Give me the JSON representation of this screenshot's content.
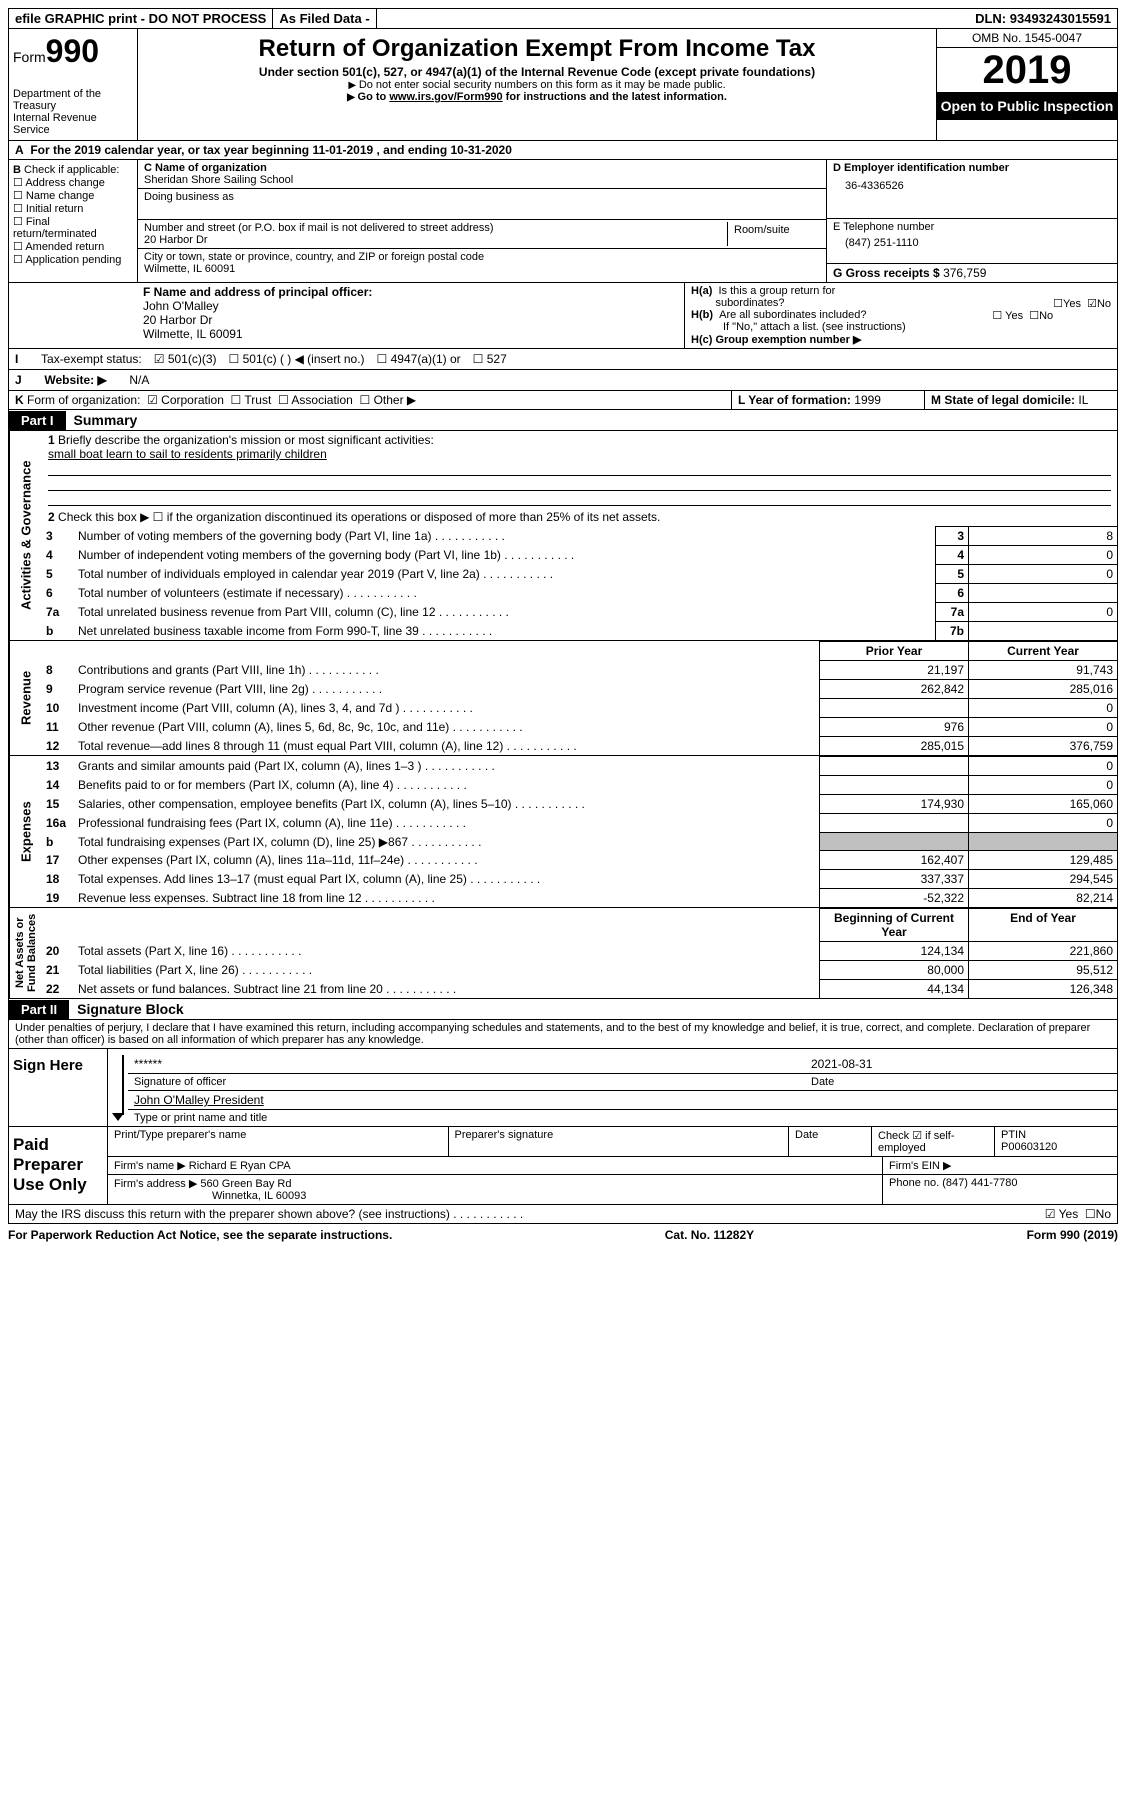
{
  "top": {
    "efile": "efile GRAPHIC print - DO NOT PROCESS",
    "asfiled": "As Filed Data -",
    "dln_label": "DLN:",
    "dln": "93493243015591"
  },
  "header": {
    "form_label": "Form",
    "form_no": "990",
    "dept": "Department of the Treasury\nInternal Revenue Service",
    "title": "Return of Organization Exempt From Income Tax",
    "sub": "Under section 501(c), 527, or 4947(a)(1) of the Internal Revenue Code (except private foundations)",
    "note1": "Do not enter social security numbers on this form as it may be made public.",
    "note2_pre": "Go to ",
    "note2_link": "www.irs.gov/Form990",
    "note2_post": " for instructions and the latest information.",
    "omb": "OMB No. 1545-0047",
    "year": "2019",
    "open": "Open to Public Inspection"
  },
  "rowA": "For the 2019 calendar year, or tax year beginning 11-01-2019   , and ending 10-31-2020",
  "boxB": {
    "label": "Check if applicable:",
    "items": [
      "Address change",
      "Name change",
      "Initial return",
      "Final return/terminated",
      "Amended return",
      "Application pending"
    ]
  },
  "boxC": {
    "name_label": "C Name of organization",
    "name": "Sheridan Shore Sailing School",
    "dba_label": "Doing business as",
    "addr_label": "Number and street (or P.O. box if mail is not delivered to street address)",
    "room_label": "Room/suite",
    "addr": "20 Harbor Dr",
    "city_label": "City or town, state or province, country, and ZIP or foreign postal code",
    "city": "Wilmette, IL  60091"
  },
  "boxD": {
    "label": "D Employer identification number",
    "val": "36-4336526"
  },
  "boxE": {
    "label": "E Telephone number",
    "val": "(847) 251-1110"
  },
  "boxG": {
    "label": "G Gross receipts $",
    "val": "376,759"
  },
  "boxF": {
    "label": "F  Name and address of principal officer:",
    "name": "John O'Malley",
    "addr1": "20 Harbor Dr",
    "addr2": "Wilmette, IL  60091"
  },
  "boxH": {
    "ha": "H(a)  Is this a group return for subordinates?",
    "hb": "H(b)  Are all subordinates included?",
    "hb_note": "If \"No,\" attach a list. (see instructions)",
    "hc": "H(c)  Group exemption number ▶",
    "yes": "Yes",
    "no": "No"
  },
  "rowI": {
    "label": "Tax-exempt status:",
    "opts": [
      "501(c)(3)",
      "501(c) (  ) ◀ (insert no.)",
      "4947(a)(1) or",
      "527"
    ]
  },
  "rowJ": {
    "label": "Website: ▶",
    "val": "N/A"
  },
  "rowK": {
    "label": "Form of organization:",
    "opts": [
      "Corporation",
      "Trust",
      "Association",
      "Other ▶"
    ]
  },
  "boxL": {
    "label": "L Year of formation:",
    "val": "1999"
  },
  "boxM": {
    "label": "M State of legal domicile:",
    "val": "IL"
  },
  "part1": {
    "tab": "Part I",
    "title": "Summary"
  },
  "mission": {
    "q": "Briefly describe the organization's mission or most significant activities:",
    "a": "small boat learn to sail to residents primarily children"
  },
  "line2": "Check this box ▶ ☐  if the organization discontinued its operations or disposed of more than 25% of its net assets.",
  "gov_rows": [
    {
      "n": "3",
      "t": "Number of voting members of the governing body (Part VI, line 1a)",
      "ln": "3",
      "v": "8"
    },
    {
      "n": "4",
      "t": "Number of independent voting members of the governing body (Part VI, line 1b)",
      "ln": "4",
      "v": "0"
    },
    {
      "n": "5",
      "t": "Total number of individuals employed in calendar year 2019 (Part V, line 2a)",
      "ln": "5",
      "v": "0"
    },
    {
      "n": "6",
      "t": "Total number of volunteers (estimate if necessary)",
      "ln": "6",
      "v": ""
    },
    {
      "n": "7a",
      "t": "Total unrelated business revenue from Part VIII, column (C), line 12",
      "ln": "7a",
      "v": "0"
    },
    {
      "n": "b",
      "t": "Net unrelated business taxable income from Form 990-T, line 39",
      "ln": "7b",
      "v": ""
    }
  ],
  "rev_head": {
    "py": "Prior Year",
    "cy": "Current Year"
  },
  "rev_rows": [
    {
      "n": "8",
      "t": "Contributions and grants (Part VIII, line 1h)",
      "py": "21,197",
      "cy": "91,743"
    },
    {
      "n": "9",
      "t": "Program service revenue (Part VIII, line 2g)",
      "py": "262,842",
      "cy": "285,016"
    },
    {
      "n": "10",
      "t": "Investment income (Part VIII, column (A), lines 3, 4, and 7d )",
      "py": "",
      "cy": "0"
    },
    {
      "n": "11",
      "t": "Other revenue (Part VIII, column (A), lines 5, 6d, 8c, 9c, 10c, and 11e)",
      "py": "976",
      "cy": "0"
    },
    {
      "n": "12",
      "t": "Total revenue—add lines 8 through 11 (must equal Part VIII, column (A), line 12)",
      "py": "285,015",
      "cy": "376,759"
    }
  ],
  "exp_rows": [
    {
      "n": "13",
      "t": "Grants and similar amounts paid (Part IX, column (A), lines 1–3 )",
      "py": "",
      "cy": "0"
    },
    {
      "n": "14",
      "t": "Benefits paid to or for members (Part IX, column (A), line 4)",
      "py": "",
      "cy": "0"
    },
    {
      "n": "15",
      "t": "Salaries, other compensation, employee benefits (Part IX, column (A), lines 5–10)",
      "py": "174,930",
      "cy": "165,060"
    },
    {
      "n": "16a",
      "t": "Professional fundraising fees (Part IX, column (A), line 11e)",
      "py": "",
      "cy": "0"
    },
    {
      "n": "b",
      "t": "Total fundraising expenses (Part IX, column (D), line 25) ▶867",
      "py": "SHADE",
      "cy": "SHADE"
    },
    {
      "n": "17",
      "t": "Other expenses (Part IX, column (A), lines 11a–11d, 11f–24e)",
      "py": "162,407",
      "cy": "129,485"
    },
    {
      "n": "18",
      "t": "Total expenses. Add lines 13–17 (must equal Part IX, column (A), line 25)",
      "py": "337,337",
      "cy": "294,545"
    },
    {
      "n": "19",
      "t": "Revenue less expenses. Subtract line 18 from line 12",
      "py": "-52,322",
      "cy": "82,214"
    }
  ],
  "na_head": {
    "py": "Beginning of Current Year",
    "cy": "End of Year"
  },
  "na_rows": [
    {
      "n": "20",
      "t": "Total assets (Part X, line 16)",
      "py": "124,134",
      "cy": "221,860"
    },
    {
      "n": "21",
      "t": "Total liabilities (Part X, line 26)",
      "py": "80,000",
      "cy": "95,512"
    },
    {
      "n": "22",
      "t": "Net assets or fund balances. Subtract line 21 from line 20",
      "py": "44,134",
      "cy": "126,348"
    }
  ],
  "sides": {
    "gov": "Activities & Governance",
    "rev": "Revenue",
    "exp": "Expenses",
    "na": "Net Assets or\nFund Balances"
  },
  "part2": {
    "tab": "Part II",
    "title": "Signature Block"
  },
  "perjury": "Under penalties of perjury, I declare that I have examined this return, including accompanying schedules and statements, and to the best of my knowledge and belief, it is true, correct, and complete. Declaration of preparer (other than officer) is based on all information of which preparer has any knowledge.",
  "sign": {
    "here": "Sign Here",
    "stars": "******",
    "sig_of": "Signature of officer",
    "date": "2021-08-31",
    "date_lbl": "Date",
    "name": "John O'Malley  President",
    "name_lbl": "Type or print name and title"
  },
  "paid": {
    "label": "Paid Preparer Use Only",
    "h1": "Print/Type preparer's name",
    "h2": "Preparer's signature",
    "h3": "Date",
    "chk": "Check ☑ if self-employed",
    "ptin_lbl": "PTIN",
    "ptin": "P00603120",
    "firm_lbl": "Firm's name   ▶",
    "firm": "Richard E Ryan CPA",
    "ein_lbl": "Firm's EIN ▶",
    "addr_lbl": "Firm's address ▶",
    "addr1": "560 Green Bay Rd",
    "addr2": "Winnetka, IL  60093",
    "phone_lbl": "Phone no.",
    "phone": "(847) 441-7780"
  },
  "discuss": "May the IRS discuss this return with the preparer shown above? (see instructions)",
  "foot": {
    "pra": "For Paperwork Reduction Act Notice, see the separate instructions.",
    "cat": "Cat. No. 11282Y",
    "form": "Form 990 (2019)"
  }
}
